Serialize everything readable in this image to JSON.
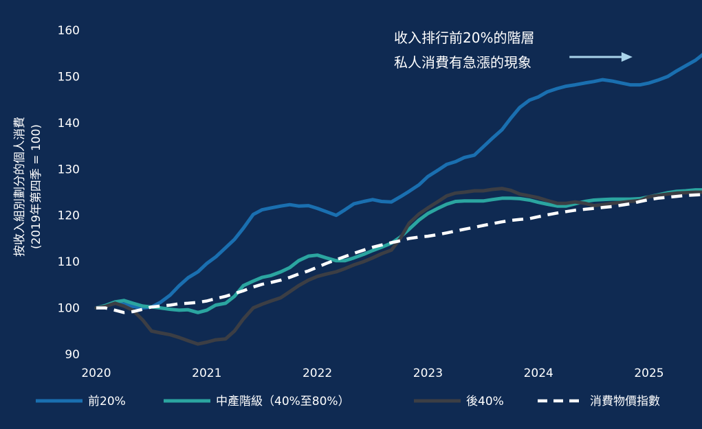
{
  "chart_data": {
    "type": "line",
    "title": "",
    "ylabel_line1": "按收入組別劃分的個人消費",
    "ylabel_line2": "(2019年第四季 = 100)",
    "xlabel": "",
    "xlim": [
      2020.0,
      2025.55
    ],
    "ylim": [
      88,
      162
    ],
    "yticks": [
      90,
      100,
      110,
      120,
      130,
      140,
      150,
      160
    ],
    "ytick_labels": [
      "90",
      "100",
      "110",
      "120",
      "130",
      "140",
      "150",
      "160"
    ],
    "xticks": [
      2020,
      2021,
      2022,
      2023,
      2024,
      2025
    ],
    "xtick_labels": [
      "2020",
      "2021",
      "2022",
      "2023",
      "2024",
      "2025"
    ],
    "annotation": {
      "line1": "收入排行前20%的階層",
      "line2": "私人消費有急漲的現象",
      "arrow_start": [
        2024.28,
        152.7
      ],
      "arrow_end": [
        2024.85,
        152.7
      ]
    },
    "series": [
      {
        "name": "前20%",
        "color": "#1a6fb0",
        "dash": "none",
        "x": [
          2020.0,
          2020.08,
          2020.17,
          2020.25,
          2020.33,
          2020.42,
          2020.5,
          2020.58,
          2020.67,
          2020.75,
          2020.83,
          2020.92,
          2021.0,
          2021.08,
          2021.17,
          2021.25,
          2021.33,
          2021.42,
          2021.5,
          2021.58,
          2021.67,
          2021.75,
          2021.83,
          2021.92,
          2022.0,
          2022.08,
          2022.17,
          2022.25,
          2022.33,
          2022.42,
          2022.5,
          2022.58,
          2022.67,
          2022.75,
          2022.83,
          2022.92,
          2023.0,
          2023.08,
          2023.17,
          2023.25,
          2023.33,
          2023.42,
          2023.5,
          2023.58,
          2023.67,
          2023.75,
          2023.83,
          2023.92,
          2024.0,
          2024.08,
          2024.17,
          2024.25,
          2024.33,
          2024.42,
          2024.5,
          2024.58,
          2024.67,
          2024.75,
          2024.83,
          2024.92,
          2025.0,
          2025.08,
          2025.17,
          2025.25,
          2025.33,
          2025.42,
          2025.5
        ],
        "values": [
          100.0,
          100.4,
          101.0,
          100.8,
          100.3,
          100.0,
          100.2,
          101.2,
          102.8,
          104.8,
          106.5,
          107.8,
          109.6,
          111.0,
          113.0,
          114.8,
          117.2,
          120.2,
          121.2,
          121.6,
          122.0,
          122.3,
          122.0,
          122.1,
          121.5,
          120.8,
          120.0,
          121.2,
          122.5,
          123.0,
          123.4,
          123.0,
          122.9,
          124.0,
          125.2,
          126.6,
          128.4,
          129.6,
          131.0,
          131.6,
          132.5,
          133.0,
          134.8,
          136.6,
          138.5,
          141.0,
          143.3,
          144.9,
          145.6,
          146.7,
          147.4,
          147.9,
          148.2,
          148.6,
          148.9,
          149.3,
          149.0,
          148.6,
          148.2,
          148.2,
          148.6,
          149.2,
          150.0,
          151.2,
          152.3,
          153.5,
          155.0
        ]
      },
      {
        "name": "中產階級（40%至80%）",
        "color": "#2ba5a0",
        "dash": "none",
        "x": [
          2020.0,
          2020.08,
          2020.17,
          2020.25,
          2020.33,
          2020.42,
          2020.5,
          2020.58,
          2020.67,
          2020.75,
          2020.83,
          2020.92,
          2021.0,
          2021.08,
          2021.17,
          2021.25,
          2021.33,
          2021.42,
          2021.5,
          2021.58,
          2021.67,
          2021.75,
          2021.83,
          2021.92,
          2022.0,
          2022.08,
          2022.17,
          2022.25,
          2022.33,
          2022.42,
          2022.5,
          2022.58,
          2022.67,
          2022.75,
          2022.83,
          2022.92,
          2023.0,
          2023.08,
          2023.17,
          2023.25,
          2023.33,
          2023.42,
          2023.5,
          2023.58,
          2023.67,
          2023.75,
          2023.83,
          2023.92,
          2024.0,
          2024.08,
          2024.17,
          2024.25,
          2024.33,
          2024.42,
          2024.5,
          2024.58,
          2024.67,
          2024.75,
          2024.83,
          2024.92,
          2025.0,
          2025.08,
          2025.17,
          2025.25,
          2025.33,
          2025.42,
          2025.5
        ],
        "values": [
          100.0,
          100.5,
          101.3,
          101.6,
          101.0,
          100.4,
          100.2,
          100.0,
          99.7,
          99.5,
          99.6,
          99.0,
          99.5,
          100.6,
          101.0,
          102.5,
          104.8,
          105.8,
          106.6,
          107.0,
          107.8,
          108.7,
          110.2,
          111.2,
          111.4,
          110.8,
          110.2,
          110.2,
          110.8,
          111.6,
          112.4,
          113.1,
          114.0,
          115.3,
          117.0,
          119.0,
          120.4,
          121.4,
          122.4,
          123.0,
          123.1,
          123.1,
          123.1,
          123.4,
          123.7,
          123.7,
          123.6,
          123.3,
          122.8,
          122.4,
          122.0,
          122.0,
          122.5,
          123.0,
          123.3,
          123.4,
          123.5,
          123.5,
          123.5,
          123.6,
          124.0,
          124.4,
          124.9,
          125.2,
          125.3,
          125.5,
          125.5
        ]
      },
      {
        "name": "後40%",
        "color": "#3c3e44",
        "dash": "none",
        "x": [
          2020.0,
          2020.08,
          2020.17,
          2020.25,
          2020.33,
          2020.42,
          2020.5,
          2020.58,
          2020.67,
          2020.75,
          2020.83,
          2020.92,
          2021.0,
          2021.08,
          2021.17,
          2021.25,
          2021.33,
          2021.42,
          2021.5,
          2021.58,
          2021.67,
          2021.75,
          2021.83,
          2021.92,
          2022.0,
          2022.08,
          2022.17,
          2022.25,
          2022.33,
          2022.42,
          2022.5,
          2022.58,
          2022.67,
          2022.75,
          2022.83,
          2022.92,
          2023.0,
          2023.08,
          2023.17,
          2023.25,
          2023.33,
          2023.42,
          2023.5,
          2023.58,
          2023.67,
          2023.75,
          2023.83,
          2023.92,
          2024.0,
          2024.08,
          2024.17,
          2024.25,
          2024.33,
          2024.42,
          2024.5,
          2024.58,
          2024.67,
          2024.75,
          2024.83,
          2024.92,
          2025.0,
          2025.08,
          2025.17,
          2025.25,
          2025.33,
          2025.42,
          2025.5
        ],
        "values": [
          100.0,
          100.3,
          101.0,
          100.4,
          99.5,
          97.4,
          95.0,
          94.6,
          94.2,
          93.6,
          92.9,
          92.2,
          92.6,
          93.1,
          93.3,
          95.0,
          97.6,
          100.0,
          100.8,
          101.5,
          102.2,
          103.5,
          104.8,
          106.0,
          106.8,
          107.3,
          107.8,
          108.5,
          109.3,
          110.0,
          110.8,
          111.7,
          112.5,
          115.0,
          118.3,
          120.3,
          121.6,
          122.8,
          124.2,
          124.8,
          125.0,
          125.3,
          125.3,
          125.6,
          125.8,
          125.4,
          124.6,
          124.2,
          123.8,
          123.2,
          122.6,
          122.6,
          122.9,
          122.6,
          122.1,
          122.3,
          122.6,
          122.8,
          123.0,
          123.2,
          124.0,
          124.3,
          124.6,
          124.8,
          124.9,
          125.0,
          125.0
        ]
      },
      {
        "name": "消費物價指數",
        "color": "#ffffff",
        "dash": "dashed",
        "x": [
          2020.0,
          2020.08,
          2020.17,
          2020.25,
          2020.33,
          2020.42,
          2020.5,
          2020.58,
          2020.67,
          2020.75,
          2020.83,
          2020.92,
          2021.0,
          2021.08,
          2021.17,
          2021.25,
          2021.33,
          2021.42,
          2021.5,
          2021.58,
          2021.67,
          2021.75,
          2021.83,
          2021.92,
          2022.0,
          2022.08,
          2022.17,
          2022.25,
          2022.33,
          2022.42,
          2022.5,
          2022.58,
          2022.67,
          2022.75,
          2022.83,
          2022.92,
          2023.0,
          2023.08,
          2023.17,
          2023.25,
          2023.33,
          2023.42,
          2023.5,
          2023.58,
          2023.67,
          2023.75,
          2023.83,
          2023.92,
          2024.0,
          2024.08,
          2024.17,
          2024.25,
          2024.33,
          2024.42,
          2024.5,
          2024.58,
          2024.67,
          2024.75,
          2024.83,
          2024.92,
          2025.0,
          2025.08,
          2025.17,
          2025.25,
          2025.33,
          2025.42,
          2025.5
        ],
        "values": [
          100.0,
          100.0,
          99.5,
          99.0,
          99.2,
          99.7,
          100.2,
          100.4,
          100.6,
          100.9,
          101.0,
          101.2,
          101.5,
          102.0,
          102.5,
          103.1,
          103.7,
          104.5,
          105.1,
          105.5,
          106.0,
          106.6,
          107.3,
          108.0,
          108.8,
          109.6,
          110.4,
          111.1,
          111.8,
          112.5,
          113.1,
          113.6,
          114.1,
          114.5,
          115.0,
          115.3,
          115.5,
          115.8,
          116.2,
          116.6,
          117.0,
          117.4,
          117.8,
          118.2,
          118.6,
          118.9,
          119.1,
          119.3,
          119.7,
          120.1,
          120.5,
          120.8,
          121.1,
          121.3,
          121.5,
          121.7,
          121.9,
          122.2,
          122.5,
          123.0,
          123.4,
          123.7,
          123.9,
          124.1,
          124.3,
          124.4,
          124.5
        ]
      }
    ]
  },
  "legend": [
    {
      "label": "前20%",
      "color": "#1a6fb0",
      "dash": "none"
    },
    {
      "label": "中產階級（40%至80%）",
      "color": "#2ba5a0",
      "dash": "none"
    },
    {
      "label": "後40%",
      "color": "#3c3e44",
      "dash": "none"
    },
    {
      "label": "消費物價指數",
      "color": "#ffffff",
      "dash": "dashed"
    }
  ],
  "colors": {
    "background": "#0f2a52",
    "arrow": "#a9d3ea"
  }
}
